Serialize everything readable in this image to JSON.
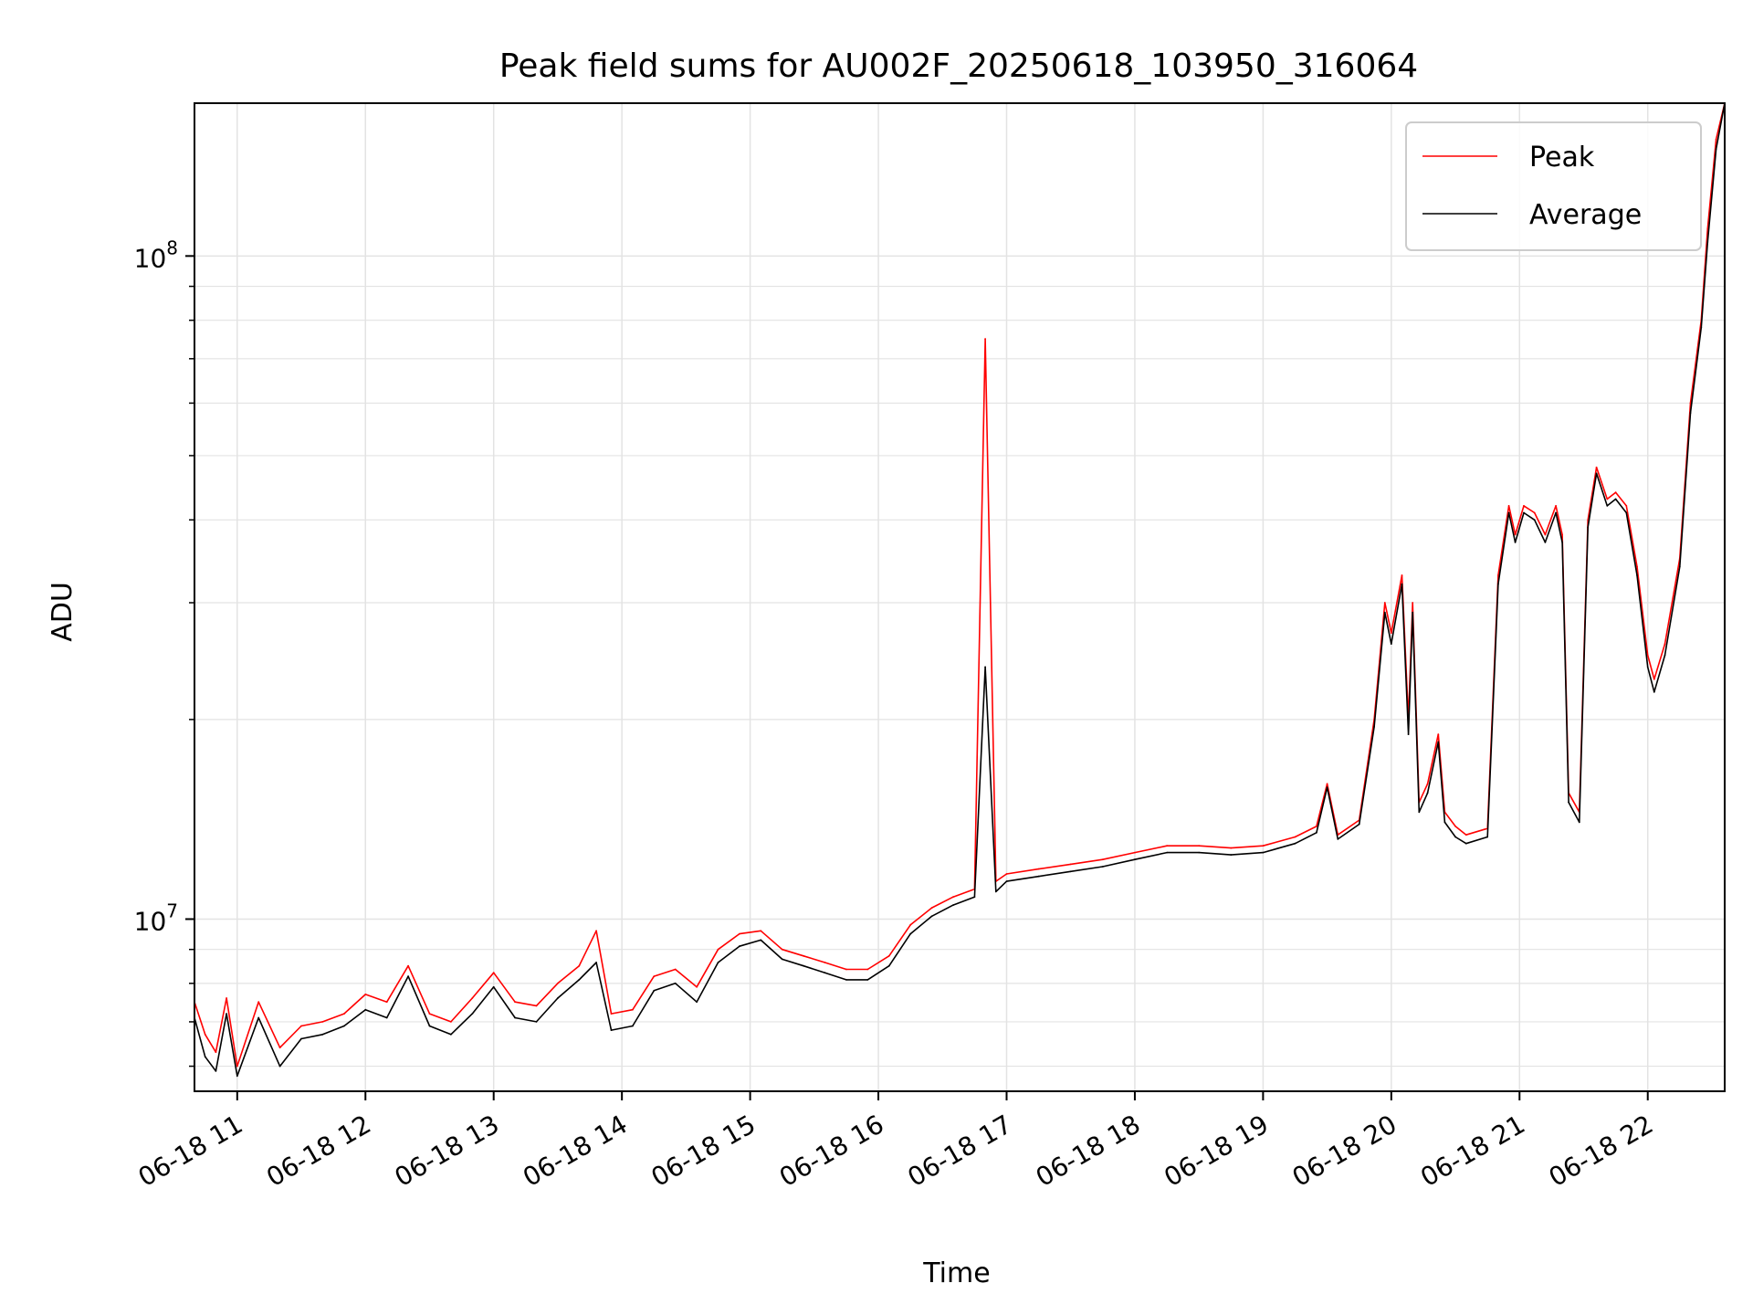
{
  "chart_data": {
    "type": "line",
    "title": "Peak field sums for AU002F_20250618_103950_316064",
    "xlabel": "Time",
    "ylabel": "ADU",
    "yscale": "log",
    "ylim": [
      5500000,
      170000000
    ],
    "xlim": [
      "06-18 10:40",
      "06-18 22:36"
    ],
    "grid": true,
    "legend_position": "top-right",
    "x_ticks": [
      "06-18 11",
      "06-18 12",
      "06-18 13",
      "06-18 14",
      "06-18 15",
      "06-18 16",
      "06-18 17",
      "06-18 18",
      "06-18 19",
      "06-18 20",
      "06-18 21",
      "06-18 22"
    ],
    "y_ticks": [
      {
        "value": 10000000,
        "base": "10",
        "exp": "7"
      },
      {
        "value": 100000000,
        "base": "10",
        "exp": "8"
      }
    ],
    "series": [
      {
        "name": "Peak",
        "color": "#ff0000",
        "x": [
          "06-18 10:40",
          "06-18 10:45",
          "06-18 10:50",
          "06-18 10:55",
          "06-18 11:00",
          "06-18 11:10",
          "06-18 11:20",
          "06-18 11:30",
          "06-18 11:40",
          "06-18 11:50",
          "06-18 12:00",
          "06-18 12:10",
          "06-18 12:20",
          "06-18 12:30",
          "06-18 12:40",
          "06-18 12:50",
          "06-18 13:00",
          "06-18 13:10",
          "06-18 13:20",
          "06-18 13:30",
          "06-18 13:40",
          "06-18 13:48",
          "06-18 13:55",
          "06-18 14:05",
          "06-18 14:15",
          "06-18 14:25",
          "06-18 14:35",
          "06-18 14:45",
          "06-18 14:55",
          "06-18 15:05",
          "06-18 15:15",
          "06-18 15:25",
          "06-18 15:35",
          "06-18 15:45",
          "06-18 15:55",
          "06-18 16:05",
          "06-18 16:15",
          "06-18 16:25",
          "06-18 16:35",
          "06-18 16:45",
          "06-18 16:50",
          "06-18 16:55",
          "06-18 17:00",
          "06-18 17:15",
          "06-18 17:30",
          "06-18 17:45",
          "06-18 18:00",
          "06-18 18:15",
          "06-18 18:30",
          "06-18 18:45",
          "06-18 19:00",
          "06-18 19:15",
          "06-18 19:25",
          "06-18 19:30",
          "06-18 19:35",
          "06-18 19:45",
          "06-18 19:52",
          "06-18 19:57",
          "06-18 20:00",
          "06-18 20:05",
          "06-18 20:08",
          "06-18 20:10",
          "06-18 20:13",
          "06-18 20:17",
          "06-18 20:22",
          "06-18 20:25",
          "06-18 20:30",
          "06-18 20:35",
          "06-18 20:45",
          "06-18 20:50",
          "06-18 20:55",
          "06-18 20:58",
          "06-18 21:02",
          "06-18 21:07",
          "06-18 21:12",
          "06-18 21:17",
          "06-18 21:20",
          "06-18 21:23",
          "06-18 21:28",
          "06-18 21:32",
          "06-18 21:36",
          "06-18 21:41",
          "06-18 21:45",
          "06-18 21:50",
          "06-18 21:55",
          "06-18 22:00",
          "06-18 22:03",
          "06-18 22:08",
          "06-18 22:15",
          "06-18 22:20",
          "06-18 22:25",
          "06-18 22:28",
          "06-18 22:32",
          "06-18 22:36"
        ],
        "y": [
          7500000,
          6700000,
          6300000,
          7600000,
          6000000,
          7500000,
          6400000,
          6900000,
          7000000,
          7200000,
          7700000,
          7500000,
          8500000,
          7200000,
          7000000,
          7600000,
          8300000,
          7500000,
          7400000,
          8000000,
          8500000,
          9600000,
          7200000,
          7300000,
          8200000,
          8400000,
          7900000,
          9000000,
          9500000,
          9600000,
          9000000,
          8800000,
          8600000,
          8400000,
          8400000,
          8800000,
          9800000,
          10400000,
          10800000,
          11100000,
          75000000,
          11400000,
          11700000,
          11900000,
          12100000,
          12300000,
          12600000,
          12900000,
          12900000,
          12800000,
          12900000,
          13300000,
          13800000,
          16000000,
          13400000,
          14100000,
          20000000,
          30000000,
          27000000,
          33000000,
          20000000,
          30000000,
          15000000,
          16000000,
          19000000,
          14500000,
          13800000,
          13400000,
          13700000,
          33000000,
          42000000,
          38000000,
          42000000,
          41000000,
          38000000,
          42000000,
          38000000,
          15500000,
          14500000,
          40000000,
          48000000,
          43000000,
          44000000,
          42000000,
          34000000,
          25000000,
          23000000,
          26000000,
          35000000,
          60000000,
          80000000,
          110000000,
          150000000,
          170000000
        ]
      },
      {
        "name": "Average",
        "color": "#000000",
        "x": [
          "06-18 10:40",
          "06-18 10:45",
          "06-18 10:50",
          "06-18 10:55",
          "06-18 11:00",
          "06-18 11:10",
          "06-18 11:20",
          "06-18 11:30",
          "06-18 11:40",
          "06-18 11:50",
          "06-18 12:00",
          "06-18 12:10",
          "06-18 12:20",
          "06-18 12:30",
          "06-18 12:40",
          "06-18 12:50",
          "06-18 13:00",
          "06-18 13:10",
          "06-18 13:20",
          "06-18 13:30",
          "06-18 13:40",
          "06-18 13:48",
          "06-18 13:55",
          "06-18 14:05",
          "06-18 14:15",
          "06-18 14:25",
          "06-18 14:35",
          "06-18 14:45",
          "06-18 14:55",
          "06-18 15:05",
          "06-18 15:15",
          "06-18 15:25",
          "06-18 15:35",
          "06-18 15:45",
          "06-18 15:55",
          "06-18 16:05",
          "06-18 16:15",
          "06-18 16:25",
          "06-18 16:35",
          "06-18 16:45",
          "06-18 16:50",
          "06-18 16:55",
          "06-18 17:00",
          "06-18 17:15",
          "06-18 17:30",
          "06-18 17:45",
          "06-18 18:00",
          "06-18 18:15",
          "06-18 18:30",
          "06-18 18:45",
          "06-18 19:00",
          "06-18 19:15",
          "06-18 19:25",
          "06-18 19:30",
          "06-18 19:35",
          "06-18 19:45",
          "06-18 19:52",
          "06-18 19:57",
          "06-18 20:00",
          "06-18 20:05",
          "06-18 20:08",
          "06-18 20:10",
          "06-18 20:13",
          "06-18 20:17",
          "06-18 20:22",
          "06-18 20:25",
          "06-18 20:30",
          "06-18 20:35",
          "06-18 20:45",
          "06-18 20:50",
          "06-18 20:55",
          "06-18 20:58",
          "06-18 21:02",
          "06-18 21:07",
          "06-18 21:12",
          "06-18 21:17",
          "06-18 21:20",
          "06-18 21:23",
          "06-18 21:28",
          "06-18 21:32",
          "06-18 21:36",
          "06-18 21:41",
          "06-18 21:45",
          "06-18 21:50",
          "06-18 21:55",
          "06-18 22:00",
          "06-18 22:03",
          "06-18 22:08",
          "06-18 22:15",
          "06-18 22:20",
          "06-18 22:25",
          "06-18 22:28",
          "06-18 22:32",
          "06-18 22:36"
        ],
        "y": [
          7100000,
          6200000,
          5900000,
          7200000,
          5800000,
          7100000,
          6000000,
          6600000,
          6700000,
          6900000,
          7300000,
          7100000,
          8200000,
          6900000,
          6700000,
          7200000,
          7900000,
          7100000,
          7000000,
          7600000,
          8100000,
          8600000,
          6800000,
          6900000,
          7800000,
          8000000,
          7500000,
          8600000,
          9100000,
          9300000,
          8700000,
          8500000,
          8300000,
          8100000,
          8100000,
          8500000,
          9500000,
          10100000,
          10500000,
          10800000,
          24000000,
          11000000,
          11400000,
          11600000,
          11800000,
          12000000,
          12300000,
          12600000,
          12600000,
          12500000,
          12600000,
          13000000,
          13500000,
          15800000,
          13200000,
          13900000,
          19500000,
          29000000,
          26000000,
          32000000,
          19000000,
          29000000,
          14500000,
          15500000,
          18500000,
          14000000,
          13300000,
          13000000,
          13300000,
          32000000,
          41000000,
          37000000,
          41000000,
          40000000,
          37000000,
          41000000,
          37000000,
          15000000,
          14000000,
          39000000,
          47000000,
          42000000,
          43000000,
          41000000,
          33000000,
          24000000,
          22000000,
          25000000,
          34000000,
          58000000,
          78000000,
          105000000,
          145000000,
          170000000
        ]
      }
    ]
  }
}
